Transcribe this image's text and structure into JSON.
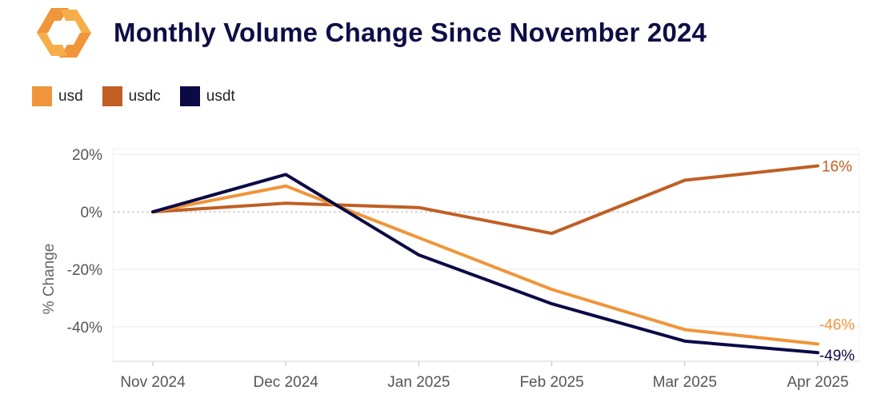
{
  "header": {
    "title": "Monthly Volume Change Since November 2024"
  },
  "colors": {
    "title": "#0f0d45",
    "grid": "#e9e9e9",
    "zero_line": "#b5b5b5"
  },
  "chart_data": {
    "type": "line",
    "title": "Monthly Volume Change Since November 2024",
    "xlabel": "",
    "ylabel": "% Change",
    "categories": [
      "Nov 2024",
      "Dec 2024",
      "Jan 2025",
      "Feb 2025",
      "Mar 2025",
      "Apr 2025"
    ],
    "ylim": [
      -52,
      22
    ],
    "yticks": [
      20,
      0,
      -20,
      -40
    ],
    "ytick_labels": [
      "20%",
      "0%",
      "-20%",
      "-40%"
    ],
    "grid": true,
    "legend_position": "top-left",
    "series": [
      {
        "name": "usd",
        "color": "#f0953a",
        "values": [
          0,
          9,
          -9,
          -27,
          -41,
          -46
        ],
        "end_label": "-46%"
      },
      {
        "name": "usdc",
        "color": "#c05e24",
        "values": [
          0,
          3,
          1.5,
          -7.5,
          11,
          16
        ],
        "end_label": "16%"
      },
      {
        "name": "usdt",
        "color": "#0b0a45",
        "values": [
          0,
          13,
          -15,
          -32,
          -45,
          -49
        ],
        "end_label": "-49%"
      }
    ]
  }
}
